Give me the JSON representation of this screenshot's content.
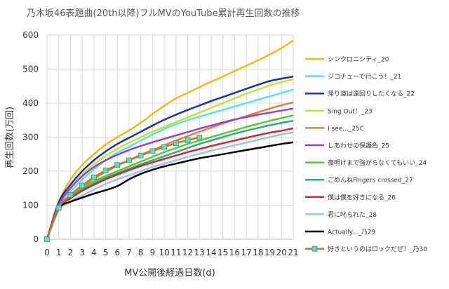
{
  "chart_data": {
    "type": "line",
    "title": "乃木坂46表題曲(20th以降)フルMVのYouTube累計再生回数の推移",
    "xlabel": "MV公開後経過日数(d)",
    "ylabel": "再生回数(万回)",
    "x": [
      0,
      1,
      2,
      3,
      4,
      5,
      6,
      7,
      8,
      9,
      10,
      11,
      12,
      13,
      14,
      15,
      16,
      17,
      18,
      19,
      20,
      21
    ],
    "xlim": [
      0,
      21
    ],
    "ylim": [
      0,
      600
    ],
    "yticks": [
      0,
      100,
      200,
      300,
      400,
      500,
      600
    ],
    "grid": true,
    "legend": "right",
    "series": [
      {
        "name": "シンクロニシティ_20",
        "color": "#F2B91A",
        "values": [
          0,
          110,
          175,
          218,
          250,
          278,
          300,
          320,
          342,
          368,
          392,
          414,
          430,
          447,
          463,
          478,
          494,
          510,
          526,
          543,
          562,
          584
        ]
      },
      {
        "name": "ジコチューで行こう！_21",
        "color": "#55E6E6",
        "values": [
          0,
          100,
          140,
          175,
          205,
          232,
          254,
          272,
          290,
          308,
          324,
          338,
          350,
          360,
          370,
          380,
          390,
          400,
          410,
          420,
          430,
          440
        ]
      },
      {
        "name": "帰り道は遠回りしたくなる_22",
        "color": "#1A2FB8",
        "values": [
          0,
          108,
          160,
          200,
          232,
          258,
          280,
          298,
          316,
          334,
          351,
          366,
          380,
          393,
          406,
          418,
          430,
          442,
          454,
          465,
          472,
          478
        ]
      },
      {
        "name": "Sing Out！_23",
        "color": "#C8E03A",
        "values": [
          0,
          98,
          150,
          190,
          220,
          245,
          266,
          284,
          300,
          316,
          330,
          344,
          358,
          372,
          386,
          400,
          414,
          428,
          440,
          452,
          462,
          470
        ]
      },
      {
        "name": "I see..._25C",
        "color": "#ED7D31",
        "values": [
          0,
          95,
          128,
          155,
          178,
          198,
          216,
          232,
          248,
          262,
          276,
          290,
          303,
          316,
          328,
          340,
          351,
          362,
          373,
          384,
          394,
          402
        ]
      },
      {
        "name": "しあわせの保護色_25",
        "color": "#9B3FCF",
        "values": [
          0,
          100,
          150,
          185,
          212,
          232,
          248,
          262,
          274,
          285,
          295,
          305,
          315,
          325,
          334,
          343,
          352,
          359,
          366,
          372,
          378,
          384
        ]
      },
      {
        "name": "夜明けまで強がらなくてもいい_24",
        "color": "#57C83B",
        "values": [
          0,
          96,
          128,
          152,
          170,
          186,
          200,
          214,
          228,
          242,
          256,
          268,
          280,
          290,
          300,
          310,
          320,
          330,
          339,
          348,
          356,
          364
        ]
      },
      {
        "name": "ごめんねFingers crossed_27",
        "color": "#2EAE72",
        "values": [
          0,
          94,
          124,
          146,
          164,
          180,
          194,
          207,
          220,
          232,
          244,
          256,
          268,
          280,
          290,
          300,
          310,
          319,
          327,
          335,
          342,
          348
        ]
      },
      {
        "name": "僕は僕を好きになる_26",
        "color": "#D9262E",
        "values": [
          0,
          92,
          120,
          142,
          160,
          176,
          190,
          203,
          215,
          226,
          236,
          246,
          256,
          265,
          274,
          282,
          290,
          298,
          306,
          313,
          319,
          326
        ]
      },
      {
        "name": "君に叱られた_28",
        "color": "#9DC3E6",
        "values": [
          0,
          84,
          110,
          128,
          146,
          162,
          176,
          188,
          200,
          212,
          222,
          232,
          242,
          251,
          260,
          268,
          276,
          284,
          292,
          300,
          308,
          314
        ]
      },
      {
        "name": "Actually..._乃29",
        "color": "#000000",
        "values": [
          0,
          90,
          110,
          122,
          134,
          144,
          156,
          176,
          192,
          204,
          214,
          222,
          230,
          238,
          244,
          250,
          256,
          262,
          268,
          274,
          280,
          285
        ]
      },
      {
        "name": "好きというのはロックだぜ！_乃30",
        "color": "#C8762B",
        "marker": "square",
        "marker_color": "#66D9B8",
        "values": [
          0,
          92,
          130,
          158,
          182,
          202,
          218,
          232,
          246,
          259,
          271,
          282,
          291,
          299,
          null,
          null,
          null,
          null,
          null,
          null,
          null,
          null
        ]
      }
    ]
  }
}
